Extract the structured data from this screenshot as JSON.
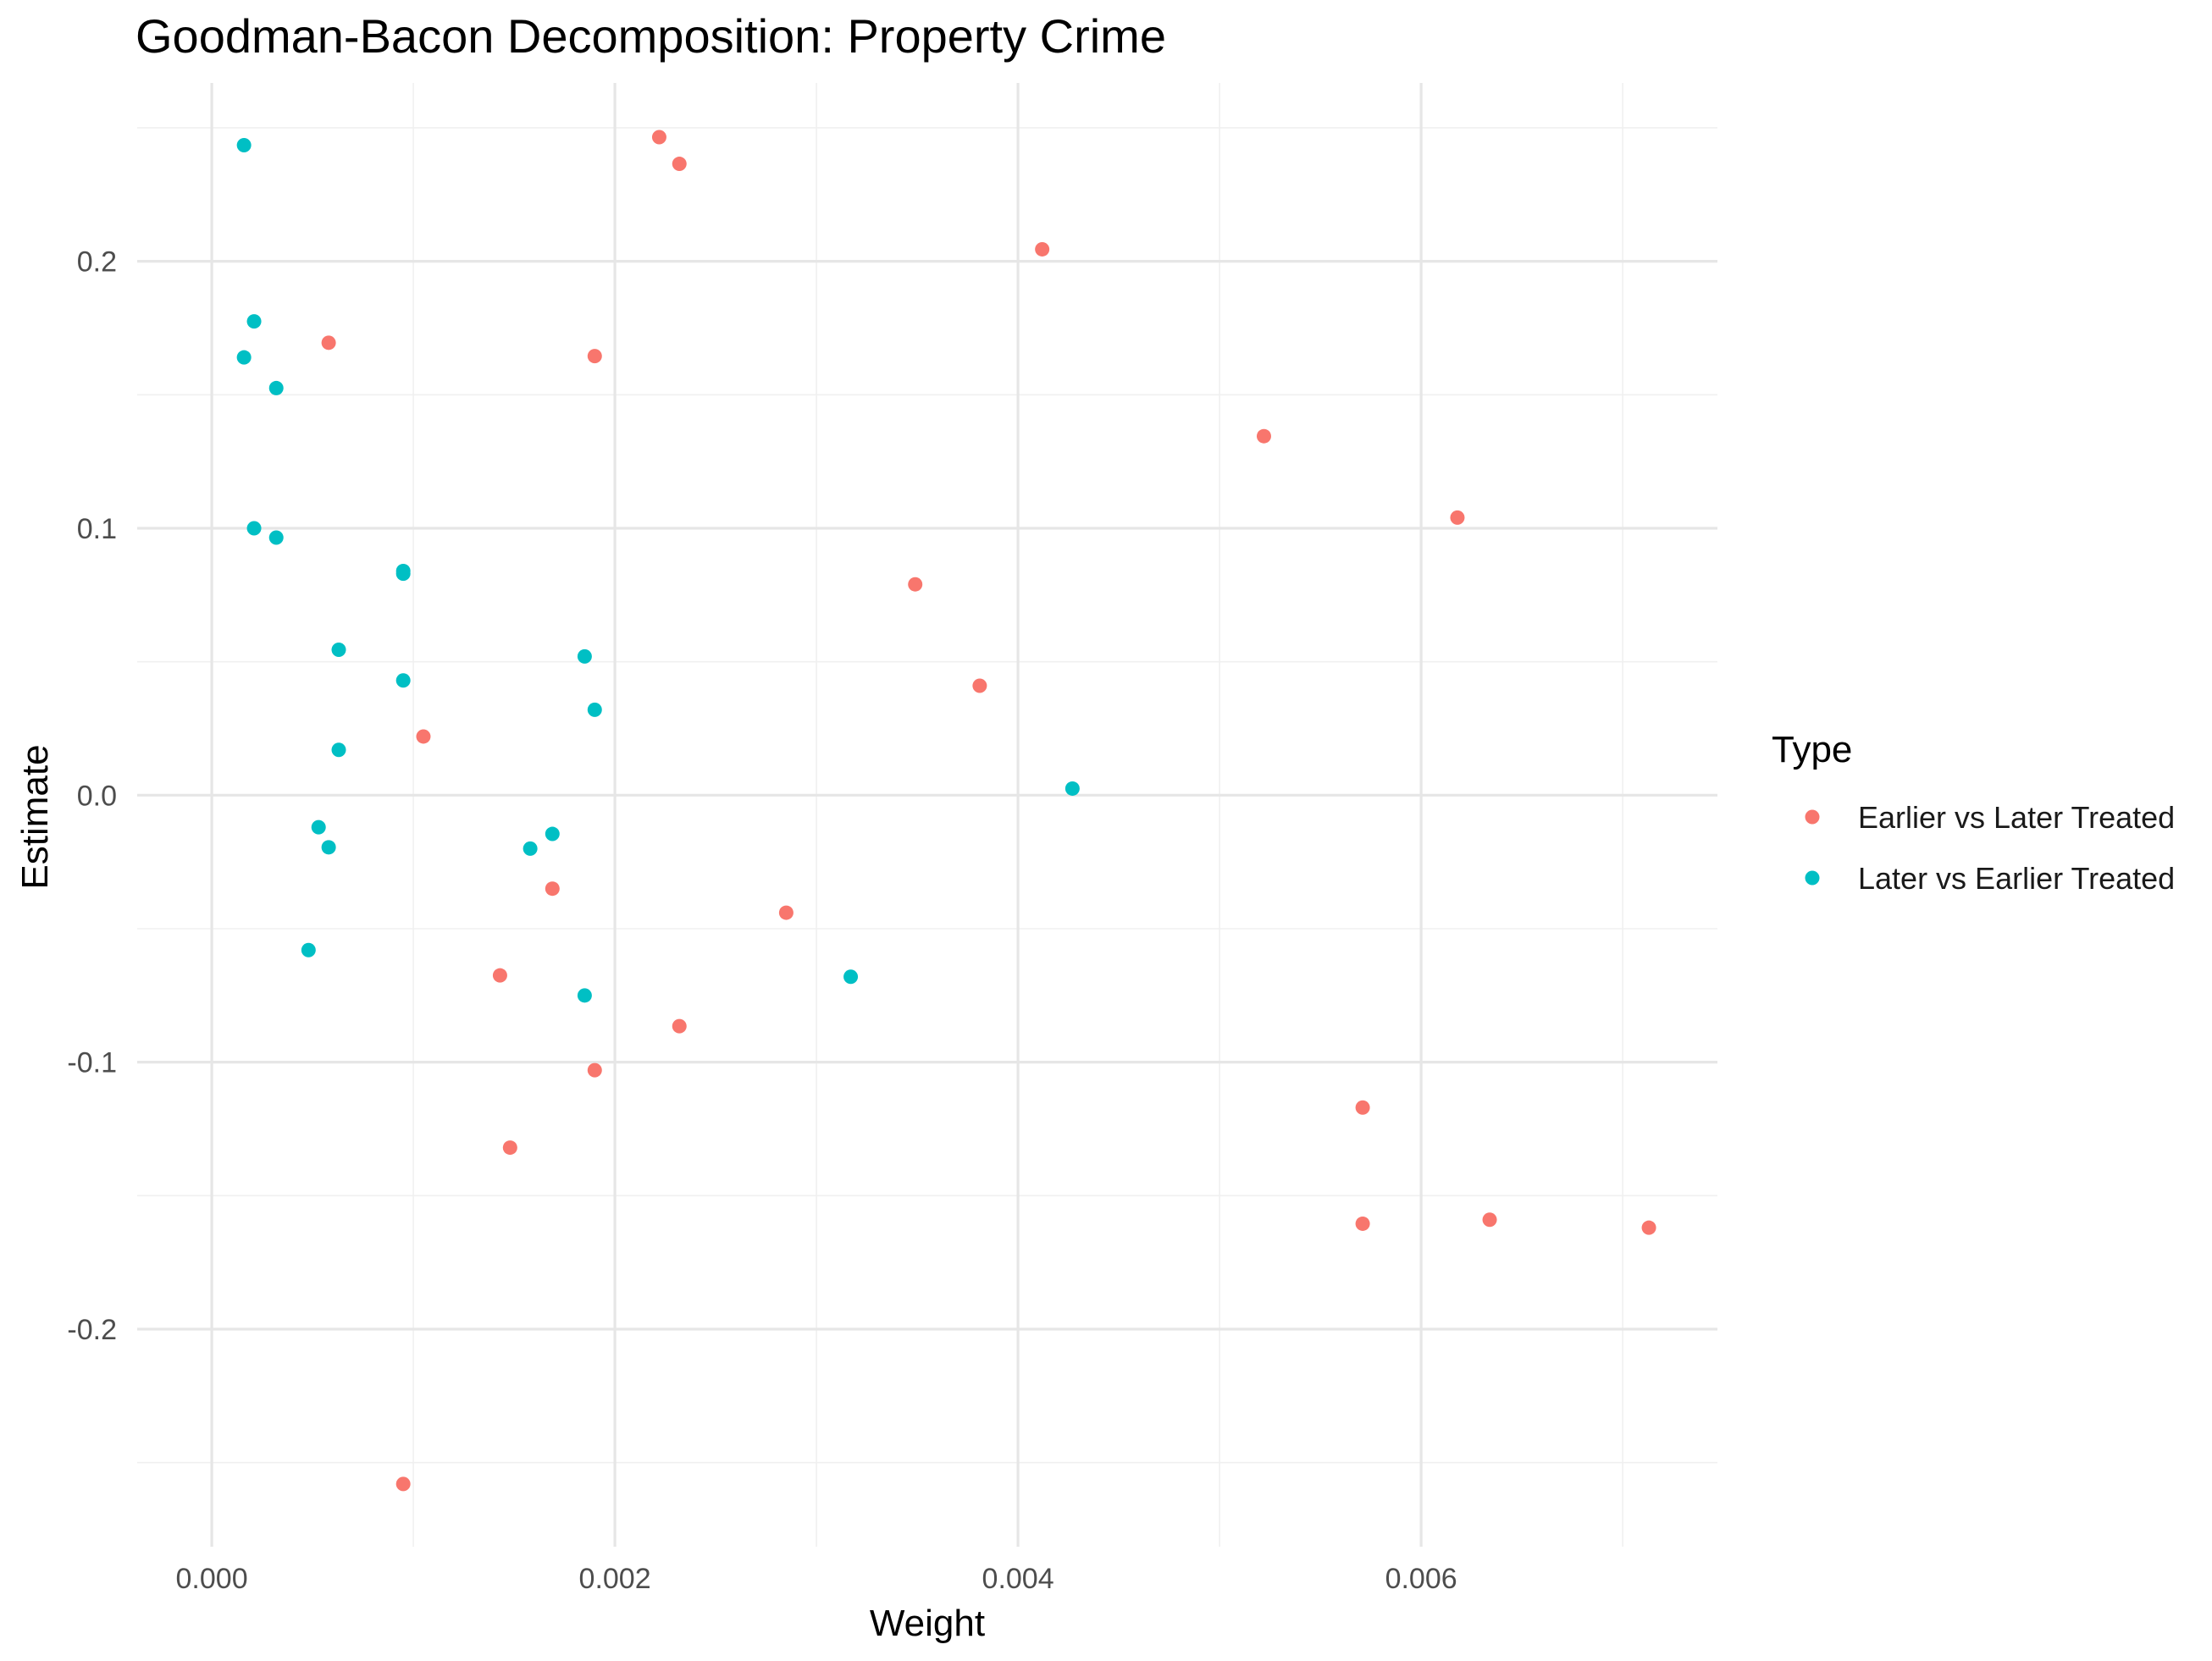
{
  "chart_data": {
    "type": "scatter",
    "title": "Goodman-Bacon Decomposition: Property Crime",
    "xlabel": "Weight",
    "ylabel": "Estimate",
    "xlim": [
      -0.00037,
      0.00747
    ],
    "ylim": [
      -0.2815,
      0.2668
    ],
    "x_ticks": [
      0.0,
      0.002,
      0.004,
      0.006
    ],
    "x_tick_labels": [
      "0.000",
      "0.002",
      "0.004",
      "0.006"
    ],
    "y_ticks": [
      -0.2,
      -0.1,
      0.0,
      0.1,
      0.2
    ],
    "y_tick_labels": [
      "-0.2",
      "-0.1",
      "0.0",
      "0.1",
      "0.2"
    ],
    "grid": true,
    "legend": {
      "title": "Type",
      "position": "right"
    },
    "series": [
      {
        "name": "Earlier vs Later Treated",
        "color": "#F8766D",
        "points": [
          [
            0.00222,
            0.2465
          ],
          [
            0.00232,
            0.2365
          ],
          [
            0.00412,
            0.2045
          ],
          [
            0.00058,
            0.1695
          ],
          [
            0.0019,
            0.1645
          ],
          [
            0.00522,
            0.1345
          ],
          [
            0.00618,
            0.104
          ],
          [
            0.00349,
            0.079
          ],
          [
            0.00381,
            0.041
          ],
          [
            0.00105,
            0.022
          ],
          [
            0.00169,
            -0.035
          ],
          [
            0.00285,
            -0.044
          ],
          [
            0.00143,
            -0.0675
          ],
          [
            0.00232,
            -0.0865
          ],
          [
            0.0019,
            -0.103
          ],
          [
            0.00571,
            -0.117
          ],
          [
            0.00148,
            -0.132
          ],
          [
            0.00571,
            -0.1605
          ],
          [
            0.00634,
            -0.159
          ],
          [
            0.00713,
            -0.162
          ],
          [
            0.00095,
            -0.258
          ]
        ]
      },
      {
        "name": "Later vs Earlier Treated",
        "color": "#00BFC4",
        "points": [
          [
            0.00016,
            0.2435
          ],
          [
            0.00021,
            0.1775
          ],
          [
            0.00016,
            0.164
          ],
          [
            0.00032,
            0.1525
          ],
          [
            0.00021,
            0.1
          ],
          [
            0.00032,
            0.0965
          ],
          [
            0.00095,
            0.084
          ],
          [
            0.00095,
            0.083
          ],
          [
            0.00063,
            0.0545
          ],
          [
            0.00185,
            0.052
          ],
          [
            0.00095,
            0.043
          ],
          [
            0.0019,
            0.032
          ],
          [
            0.00063,
            0.017
          ],
          [
            0.00427,
            0.0025
          ],
          [
            0.00053,
            -0.012
          ],
          [
            0.00169,
            -0.0145
          ],
          [
            0.00058,
            -0.0195
          ],
          [
            0.00158,
            -0.02
          ],
          [
            0.00048,
            -0.058
          ],
          [
            0.00317,
            -0.068
          ],
          [
            0.00185,
            -0.075
          ]
        ]
      }
    ]
  }
}
